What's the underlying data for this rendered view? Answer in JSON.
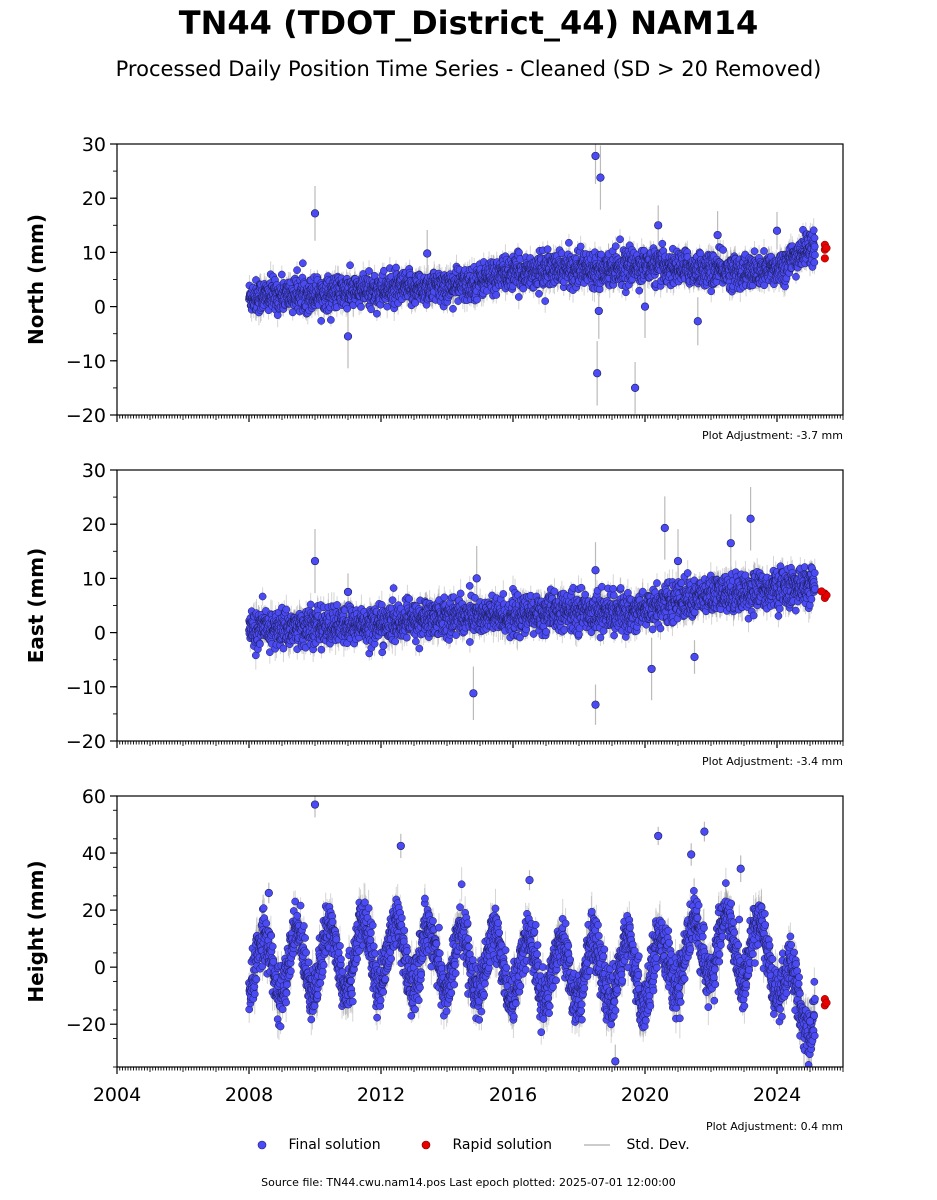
{
  "title": "TN44 (TDOT_District_44) NAM14",
  "subtitle": "Processed Daily Position Time Series - Cleaned (SD > 20 Removed)",
  "footer": "Source file: TN44.cwu.nam14.pos  Last epoch plotted: 2025-07-01 12:00:00",
  "legend": {
    "final": "Final solution",
    "rapid": "Rapid solution",
    "std": "Std. Dev."
  },
  "colors": {
    "final": "#4b4bf5",
    "rapid": "#e80000",
    "std": "#bbbbbb"
  },
  "chart_data": [
    {
      "type": "scatter",
      "ylabel": "North (mm)",
      "adjustment": "Plot Adjustment: -3.7 mm",
      "xlim": [
        2004,
        2026
      ],
      "ylim": [
        -20,
        30
      ],
      "yticks": [
        -20,
        -10,
        0,
        10,
        20,
        30
      ],
      "xticks": [
        2004,
        2008,
        2012,
        2016,
        2020,
        2024
      ],
      "trend": [
        [
          2008.0,
          1.8
        ],
        [
          2012.0,
          3.0
        ],
        [
          2014.6,
          4.0
        ],
        [
          2015.5,
          5.8
        ],
        [
          2016.5,
          6.5
        ],
        [
          2018.0,
          7.0
        ],
        [
          2020.0,
          7.5
        ],
        [
          2022.0,
          6.8
        ],
        [
          2023.5,
          6.3
        ],
        [
          2024.2,
          7.5
        ],
        [
          2025.0,
          11.0
        ]
      ],
      "noise": 1.5,
      "final_series": {
        "name": "Final solution",
        "x_range": [
          2008.0,
          2025.15
        ],
        "outliers": [
          [
            2010.0,
            17.2
          ],
          [
            2011.0,
            -5.5
          ],
          [
            2018.5,
            27.8
          ],
          [
            2018.65,
            23.8
          ],
          [
            2018.55,
            -12.3
          ],
          [
            2019.7,
            -15.0
          ],
          [
            2018.6,
            -0.8
          ],
          [
            2020.4,
            15.0
          ],
          [
            2024.0,
            14.0
          ],
          [
            2021.6,
            -2.7
          ],
          [
            2022.2,
            13.2
          ],
          [
            2013.4,
            9.8
          ],
          [
            2020.0,
            0.0
          ]
        ]
      },
      "rapid_series": {
        "name": "Rapid solution",
        "points": [
          [
            2025.45,
            11.4
          ],
          [
            2025.45,
            10.5
          ],
          [
            2025.45,
            8.9
          ],
          [
            2025.5,
            10.8
          ]
        ]
      }
    },
    {
      "type": "scatter",
      "ylabel": "East (mm)",
      "adjustment": "Plot Adjustment: -3.4 mm",
      "xlim": [
        2004,
        2026
      ],
      "ylim": [
        -20,
        30
      ],
      "yticks": [
        -20,
        -10,
        0,
        10,
        20,
        30
      ],
      "xticks": [
        2004,
        2008,
        2012,
        2016,
        2020,
        2024
      ],
      "trend": [
        [
          2008.0,
          0.5
        ],
        [
          2010.0,
          1.0
        ],
        [
          2012.0,
          1.5
        ],
        [
          2014.0,
          3.0
        ],
        [
          2016.0,
          3.0
        ],
        [
          2018.0,
          4.0
        ],
        [
          2019.5,
          3.5
        ],
        [
          2021.0,
          6.0
        ],
        [
          2023.0,
          7.5
        ],
        [
          2025.0,
          8.5
        ]
      ],
      "noise": 1.7,
      "final_series": {
        "name": "Final solution",
        "x_range": [
          2008.0,
          2025.15
        ],
        "outliers": [
          [
            2010.0,
            13.2
          ],
          [
            2014.8,
            -11.2
          ],
          [
            2018.5,
            -13.3
          ],
          [
            2018.5,
            11.5
          ],
          [
            2020.6,
            19.3
          ],
          [
            2023.2,
            21.0
          ],
          [
            2022.6,
            16.5
          ],
          [
            2020.2,
            -6.7
          ],
          [
            2021.5,
            -4.5
          ],
          [
            2021.0,
            13.2
          ],
          [
            2011.0,
            7.5
          ],
          [
            2014.9,
            10.0
          ]
        ]
      },
      "rapid_series": {
        "name": "Rapid solution",
        "points": [
          [
            2025.45,
            7.2
          ],
          [
            2025.45,
            6.4
          ],
          [
            2025.5,
            6.9
          ],
          [
            2025.35,
            7.6
          ]
        ]
      }
    },
    {
      "type": "scatter",
      "ylabel": "Height (mm)",
      "adjustment": "Plot Adjustment: 0.4 mm",
      "xlim": [
        2004,
        2026
      ],
      "ylim": [
        -35,
        60
      ],
      "yticks": [
        -20,
        0,
        20,
        40,
        60
      ],
      "xticks": [
        2004,
        2008,
        2012,
        2016,
        2020,
        2024
      ],
      "trend": [
        [
          2008.0,
          0.0
        ],
        [
          2012.0,
          5.0
        ],
        [
          2016.0,
          0.0
        ],
        [
          2020.0,
          -2.0
        ],
        [
          2022.0,
          8.0
        ],
        [
          2023.8,
          5.0
        ],
        [
          2024.6,
          -15.0
        ],
        [
          2025.15,
          -12.0
        ]
      ],
      "seasonal_amplitude": 11,
      "noise": 4.5,
      "final_series": {
        "name": "Final solution",
        "x_range": [
          2008.0,
          2025.15
        ],
        "outliers": [
          [
            2010.0,
            57.0
          ],
          [
            2012.6,
            42.5
          ],
          [
            2020.4,
            46.0
          ],
          [
            2021.8,
            47.5
          ],
          [
            2021.4,
            39.5
          ],
          [
            2008.6,
            26.0
          ],
          [
            2016.5,
            30.5
          ],
          [
            2019.1,
            -33.0
          ],
          [
            2022.9,
            34.5
          ],
          [
            2025.0,
            -19.0
          ]
        ]
      },
      "rapid_series": {
        "name": "Rapid solution",
        "points": [
          [
            2025.45,
            -11.2
          ],
          [
            2025.45,
            -13.4
          ],
          [
            2025.5,
            -12.5
          ]
        ]
      }
    }
  ]
}
